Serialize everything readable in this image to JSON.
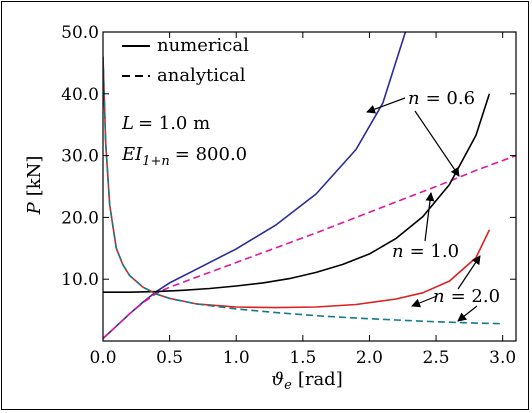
{
  "chart_data": {
    "type": "line",
    "xlabel": {
      "symbol": "ϑ",
      "sub": "e",
      "unit": "[rad]"
    },
    "ylabel": {
      "symbol": "P",
      "unit": "[kN]"
    },
    "xlim": [
      0.0,
      3.1
    ],
    "ylim": [
      0.0,
      50.0
    ],
    "xticks": [
      "0.0",
      "0.5",
      "1.0",
      "1.5",
      "2.0",
      "2.5",
      "3.0"
    ],
    "xtick_values": [
      0.0,
      0.5,
      1.0,
      1.5,
      2.0,
      2.5,
      3.0
    ],
    "yticks": [
      "10.0",
      "20.0",
      "30.0",
      "40.0",
      "50.0"
    ],
    "ytick_values": [
      10.0,
      20.0,
      30.0,
      40.0,
      50.0
    ],
    "legend": {
      "position": "top-left",
      "entries": [
        {
          "label": "numerical",
          "style": "solid"
        },
        {
          "label": "analytical",
          "style": "dashed"
        }
      ]
    },
    "params": {
      "L": {
        "name": "L",
        "value": "= 1.0 m"
      },
      "EI": {
        "name": "EI",
        "sub": "1+n",
        "value": "= 800.0"
      }
    },
    "annotations": [
      {
        "text": "n = 0.6",
        "n": "n",
        "eq": "= 0.6"
      },
      {
        "text": "n = 1.0",
        "n": "n",
        "eq": "= 1.0"
      },
      {
        "text": "n = 2.0",
        "n": "n",
        "eq": "= 2.0"
      }
    ],
    "series": [
      {
        "group": "n = 0.6",
        "style": "solid",
        "color": "#2b2b9a",
        "x": [
          0.0,
          0.1,
          0.2,
          0.3,
          0.4,
          0.5,
          0.7,
          1.0,
          1.3,
          1.6,
          1.9,
          2.1,
          2.27
        ],
        "y": [
          0.4,
          2.4,
          4.4,
          6.3,
          8.0,
          9.4,
          11.6,
          14.9,
          18.8,
          23.8,
          31.0,
          38.5,
          50.0
        ]
      },
      {
        "group": "n = 0.6",
        "style": "dashed",
        "color": "#e0189e",
        "x": [
          0.0,
          0.1,
          0.2,
          0.3,
          0.4,
          0.5,
          0.7,
          1.0,
          1.3,
          1.6,
          1.9,
          2.2,
          2.5,
          2.8,
          3.1
        ],
        "y": [
          0.4,
          2.4,
          4.4,
          6.2,
          7.7,
          8.7,
          10.3,
          12.7,
          15.1,
          17.5,
          20.0,
          22.5,
          25.0,
          27.6,
          30.0
        ]
      },
      {
        "group": "n = 1.0",
        "style": "solid",
        "color": "#000000",
        "x": [
          0.0,
          0.2,
          0.4,
          0.6,
          0.8,
          1.0,
          1.2,
          1.4,
          1.6,
          1.8,
          2.0,
          2.2,
          2.4,
          2.6,
          2.8,
          2.9
        ],
        "y": [
          7.9,
          7.9,
          8.0,
          8.2,
          8.5,
          8.9,
          9.4,
          10.1,
          11.1,
          12.4,
          14.1,
          16.6,
          20.1,
          25.3,
          33.3,
          40.0
        ]
      },
      {
        "group": "n = 2.0",
        "style": "solid",
        "color": "#dd2020",
        "x": [
          0.0,
          0.02,
          0.05,
          0.1,
          0.15,
          0.2,
          0.3,
          0.4,
          0.5,
          0.7,
          1.0,
          1.3,
          1.6,
          1.9,
          2.2,
          2.4,
          2.6,
          2.8,
          2.9
        ],
        "y": [
          46.0,
          32.0,
          22.0,
          15.0,
          12.3,
          10.6,
          8.7,
          7.6,
          6.9,
          6.0,
          5.5,
          5.4,
          5.5,
          5.9,
          6.8,
          7.8,
          9.7,
          13.5,
          18.0
        ]
      },
      {
        "group": "n = 2.0",
        "style": "dashed",
        "color": "#137b8a",
        "x": [
          0.0,
          0.02,
          0.05,
          0.1,
          0.15,
          0.2,
          0.3,
          0.4,
          0.5,
          0.7,
          1.0,
          1.3,
          1.6,
          1.9,
          2.2,
          2.5,
          2.8,
          3.0
        ],
        "y": [
          46.0,
          32.0,
          22.0,
          15.0,
          12.3,
          10.6,
          8.7,
          7.6,
          6.9,
          6.0,
          5.2,
          4.6,
          4.1,
          3.7,
          3.4,
          3.1,
          2.9,
          2.8
        ]
      }
    ]
  }
}
